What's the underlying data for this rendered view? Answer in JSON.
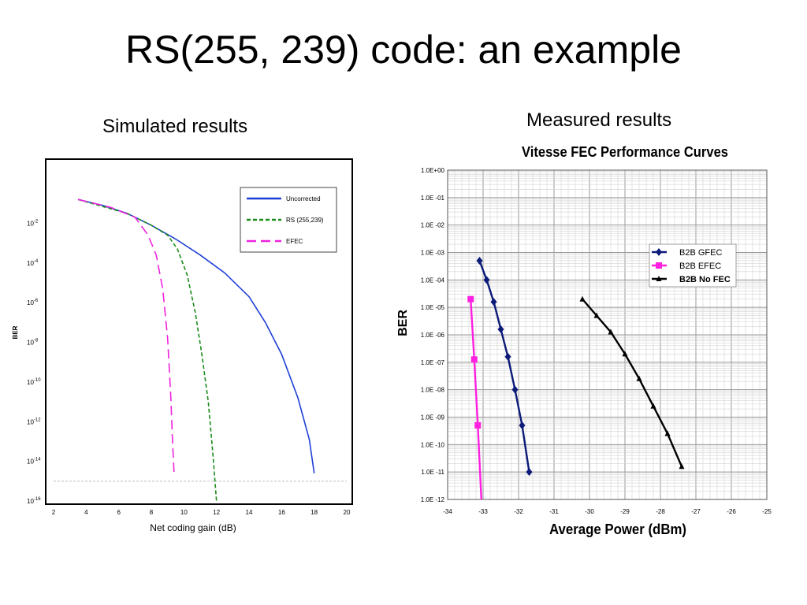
{
  "slide": {
    "title": "RS(255, 239) code: an example",
    "left_subtitle": "Simulated results",
    "right_subtitle": "Measured results"
  },
  "chart_data": [
    {
      "type": "line",
      "title": "",
      "xlabel": "Net coding gain (dB)",
      "ylabel": "BER",
      "xlim": [
        2,
        20
      ],
      "ylim_exponent": [
        -16,
        0
      ],
      "y_scale": "log",
      "x_ticks": [
        "2",
        "4",
        "6",
        "8",
        "10",
        "12",
        "14",
        "16",
        "18",
        "20"
      ],
      "y_ticks": [
        {
          "base": "10",
          "exp": "-2",
          "value": -2
        },
        {
          "base": "10",
          "exp": "-4",
          "value": -4
        },
        {
          "base": "10",
          "exp": "-6",
          "value": -6
        },
        {
          "base": "10",
          "exp": "-8",
          "value": -8
        },
        {
          "base": "10",
          "exp": "-10",
          "value": -10
        },
        {
          "base": "10",
          "exp": "-12",
          "value": -12
        },
        {
          "base": "10",
          "exp": "-14",
          "value": -14
        },
        {
          "base": "10",
          "exp": "-16",
          "value": -16
        }
      ],
      "reference_line_exponent": -15,
      "legend_position": "top-right",
      "series": [
        {
          "name": "Uncorrected",
          "color": "#1f3fd6",
          "dash": "solid",
          "points": [
            [
              3.5,
              -0.8
            ],
            [
              5,
              -1.1
            ],
            [
              6.5,
              -1.5
            ],
            [
              8,
              -2.1
            ],
            [
              9.5,
              -2.8
            ],
            [
              11,
              -3.6
            ],
            [
              12.5,
              -4.5
            ],
            [
              14,
              -5.7
            ],
            [
              15,
              -7
            ],
            [
              16,
              -8.6
            ],
            [
              17,
              -10.8
            ],
            [
              17.7,
              -12.9
            ],
            [
              18,
              -14.6
            ]
          ]
        },
        {
          "name": "RS (255,239)",
          "color": "#1a8a1a",
          "dash": "dashed",
          "points": [
            [
              3.5,
              -0.8
            ],
            [
              6.5,
              -1.5
            ],
            [
              8,
              -2.1
            ],
            [
              9,
              -2.6
            ],
            [
              9.6,
              -3.3
            ],
            [
              10.2,
              -4.6
            ],
            [
              10.7,
              -6.5
            ],
            [
              11.1,
              -8.6
            ],
            [
              11.5,
              -11
            ],
            [
              11.8,
              -13.8
            ],
            [
              12,
              -16
            ]
          ]
        },
        {
          "name": "EFEC",
          "color": "#ee22dd",
          "dash": "longdash",
          "points": [
            [
              3.5,
              -0.8
            ],
            [
              5.5,
              -1.2
            ],
            [
              7,
              -1.7
            ],
            [
              7.8,
              -2.6
            ],
            [
              8.3,
              -3.6
            ],
            [
              8.7,
              -5.3
            ],
            [
              9,
              -7.8
            ],
            [
              9.2,
              -10.8
            ],
            [
              9.3,
              -13
            ],
            [
              9.4,
              -14.6
            ]
          ]
        }
      ]
    },
    {
      "type": "line",
      "title": "Vitesse FEC Performance Curves",
      "xlabel": "Average Power (dBm)",
      "ylabel": "BER",
      "xlim": [
        -34,
        -25
      ],
      "ylim_exponent": [
        -12,
        0
      ],
      "y_scale": "log",
      "x_ticks": [
        "-34",
        "-33",
        "-32",
        "-31",
        "-30",
        "-29",
        "-28",
        "-27",
        "-26",
        "-25"
      ],
      "y_ticks": [
        "1.0E+00",
        "1.0E -01",
        "1.0E -02",
        "1.0E -03",
        "1.0E -04",
        "1.0E -05",
        "1.0E -06",
        "1.0E -07",
        "1.0E -08",
        "1.0E -09",
        "1.0E -10",
        "1.0E -11",
        "1.0E -12"
      ],
      "legend_position": "top-right",
      "series": [
        {
          "name": "B2B GFEC",
          "color": "#0b1a78",
          "marker": "diamond",
          "x": [
            -33.1,
            -32.9,
            -32.7,
            -32.5,
            -32.3,
            -32.1,
            -31.9,
            -31.7
          ],
          "y_exponent": [
            -3.3,
            -4,
            -4.8,
            -5.8,
            -6.8,
            -8,
            -9.3,
            -11
          ]
        },
        {
          "name": "B2B EFEC",
          "color": "#ff1fe0",
          "marker": "square",
          "x": [
            -33.35,
            -33.25,
            -33.15,
            -33.05
          ],
          "y_exponent": [
            -4.7,
            -6.9,
            -9.3,
            -12
          ]
        },
        {
          "name": "B2B No FEC",
          "color": "#000000",
          "marker": "triangle",
          "x": [
            -30.2,
            -29.8,
            -29.4,
            -29,
            -28.6,
            -28.2,
            -27.8,
            -27.4
          ],
          "y_exponent": [
            -4.7,
            -5.3,
            -5.9,
            -6.7,
            -7.6,
            -8.6,
            -9.6,
            -10.8
          ]
        }
      ]
    }
  ]
}
